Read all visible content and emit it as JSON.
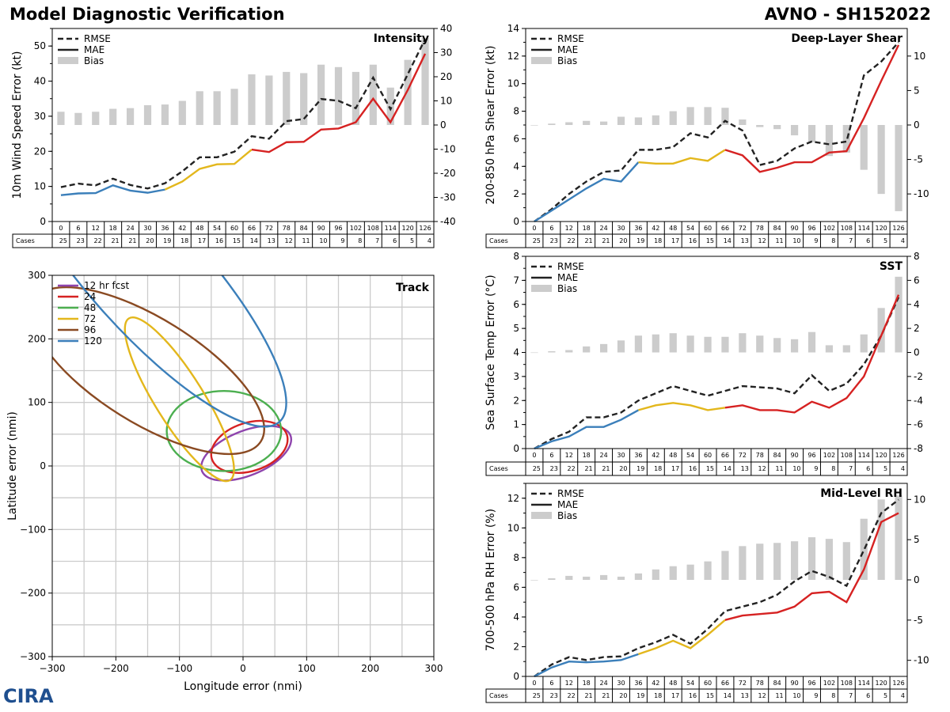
{
  "header": {
    "left_title": "Model Diagnostic Verification",
    "right_title": "AVNO - SH152022"
  },
  "logo": {
    "text": "CIRA",
    "icon": "cira-logo-icon"
  },
  "colors": {
    "rmse": "#222222",
    "short": "#3b7fba",
    "mid": "#e3b71c",
    "long": "#d62222",
    "bias": "#cccccc"
  },
  "hours": [
    "0",
    "6",
    "12",
    "18",
    "24",
    "30",
    "36",
    "42",
    "48",
    "54",
    "60",
    "66",
    "72",
    "78",
    "84",
    "90",
    "96",
    "102",
    "108",
    "114",
    "120",
    "126"
  ],
  "cases": [
    "25",
    "23",
    "22",
    "21",
    "21",
    "20",
    "19",
    "18",
    "17",
    "16",
    "15",
    "14",
    "13",
    "12",
    "11",
    "10",
    "9",
    "8",
    "7",
    "6",
    "5",
    "4"
  ],
  "cases_label": "Cases",
  "chart_data": [
    {
      "id": "intensity",
      "type": "line",
      "title": "Intensity",
      "ylabel": "10m Wind Speed Error (kt)",
      "ylim": [
        0,
        55
      ],
      "yticks": [
        0,
        10,
        20,
        30,
        40,
        50
      ],
      "y2lim": [
        -40,
        40
      ],
      "y2ticks": [
        -40,
        -30,
        -20,
        -10,
        0,
        10,
        20,
        30,
        40
      ],
      "legend": [
        "RMSE",
        "MAE",
        "Bias"
      ],
      "rmse": [
        9.8,
        10.8,
        10.3,
        12.2,
        10.4,
        9.4,
        10.9,
        14.3,
        18.3,
        18.3,
        19.9,
        24.3,
        23.6,
        28.6,
        29.2,
        34.9,
        34.4,
        32.3,
        41.0,
        32.0,
        42.0,
        52.0
      ],
      "mae": [
        7.5,
        8.0,
        8.1,
        10.3,
        8.8,
        8.2,
        9.1,
        11.4,
        15.0,
        16.3,
        16.4,
        20.5,
        19.8,
        22.6,
        22.7,
        26.2,
        26.5,
        28.3,
        35.0,
        28.3,
        37.5,
        47.8
      ],
      "bias": [
        5.5,
        5,
        5.5,
        6.7,
        7,
        8.2,
        8.5,
        10,
        14,
        14,
        15,
        21,
        20.5,
        22,
        21.5,
        25,
        24,
        22,
        25,
        15.5,
        27,
        36
      ]
    },
    {
      "id": "shear",
      "type": "line",
      "title": "Deep-Layer Shear",
      "ylabel": "200-850 hPa Shear Error (kt)",
      "ylim": [
        0,
        14
      ],
      "yticks": [
        0,
        2,
        4,
        6,
        8,
        10,
        12,
        14
      ],
      "y2lim": [
        -14,
        14
      ],
      "y2ticks": [
        -10,
        -5,
        0,
        5,
        10
      ],
      "legend": [
        "RMSE",
        "MAE",
        "Bias"
      ],
      "rmse": [
        0,
        0.9,
        2.0,
        2.9,
        3.6,
        3.7,
        5.2,
        5.2,
        5.4,
        6.4,
        6.1,
        7.3,
        6.6,
        4.1,
        4.4,
        5.3,
        5.8,
        5.6,
        5.8,
        10.6,
        11.6,
        13.0
      ],
      "mae": [
        0,
        0.8,
        1.6,
        2.4,
        3.1,
        2.9,
        4.3,
        4.2,
        4.2,
        4.6,
        4.4,
        5.2,
        4.8,
        3.6,
        3.9,
        4.3,
        4.3,
        5.0,
        5.1,
        7.5,
        10.2,
        12.8
      ],
      "bias": [
        0,
        0.2,
        0.4,
        0.6,
        0.5,
        1.2,
        1.1,
        1.4,
        2.0,
        2.6,
        2.6,
        2.5,
        0.8,
        -0.3,
        -0.6,
        -1.5,
        -2.5,
        -4.5,
        -4.0,
        -6.5,
        -10.0,
        -12.5
      ]
    },
    {
      "id": "sst",
      "type": "line",
      "title": "SST",
      "ylabel": "Sea Surface Temp Error (°C)",
      "ylim": [
        0,
        8
      ],
      "yticks": [
        0,
        1,
        2,
        3,
        4,
        5,
        6,
        7,
        8
      ],
      "y2lim": [
        -8,
        8
      ],
      "y2ticks": [
        -8,
        -6,
        -4,
        -2,
        0,
        2,
        4,
        6,
        8
      ],
      "legend": [
        "RMSE",
        "MAE",
        "Bias"
      ],
      "rmse": [
        0,
        0.4,
        0.7,
        1.3,
        1.3,
        1.5,
        2.0,
        2.3,
        2.6,
        2.4,
        2.2,
        2.4,
        2.6,
        2.55,
        2.5,
        2.3,
        3.05,
        2.4,
        2.7,
        3.5,
        4.7,
        6.3
      ],
      "mae": [
        0,
        0.3,
        0.5,
        0.9,
        0.9,
        1.2,
        1.6,
        1.8,
        1.9,
        1.8,
        1.6,
        1.7,
        1.8,
        1.6,
        1.6,
        1.5,
        1.95,
        1.7,
        2.1,
        3.0,
        4.7,
        6.4
      ],
      "bias": [
        0,
        0.1,
        0.2,
        0.5,
        0.7,
        1.0,
        1.4,
        1.5,
        1.6,
        1.4,
        1.3,
        1.3,
        1.6,
        1.4,
        1.2,
        1.1,
        1.7,
        0.6,
        0.6,
        1.5,
        3.7,
        6.3
      ]
    },
    {
      "id": "rh",
      "type": "line",
      "title": "Mid-Level RH",
      "ylabel": "700-500 hPa RH Error (%)",
      "ylim": [
        0,
        13
      ],
      "yticks": [
        0,
        2,
        4,
        6,
        8,
        10,
        12
      ],
      "y2lim": [
        -12,
        12
      ],
      "y2ticks": [
        -10,
        -5,
        0,
        5,
        10
      ],
      "legend": [
        "RMSE",
        "MAE",
        "Bias"
      ],
      "rmse": [
        0,
        0.8,
        1.3,
        1.1,
        1.3,
        1.35,
        1.9,
        2.3,
        2.8,
        2.2,
        3.2,
        4.4,
        4.7,
        5.0,
        5.5,
        6.4,
        7.1,
        6.7,
        6.1,
        8.5,
        11.0,
        11.9
      ],
      "mae": [
        0,
        0.6,
        1.0,
        0.95,
        1.0,
        1.1,
        1.5,
        1.9,
        2.4,
        1.9,
        2.8,
        3.8,
        4.1,
        4.2,
        4.3,
        4.7,
        5.6,
        5.7,
        5.0,
        7.2,
        10.4,
        11.0
      ],
      "bias": [
        0,
        0.2,
        0.5,
        0.4,
        0.6,
        0.4,
        0.8,
        1.3,
        1.7,
        1.9,
        2.3,
        3.6,
        4.2,
        4.5,
        4.6,
        4.8,
        5.3,
        5.1,
        4.7,
        7.6,
        10.0,
        10.5
      ]
    },
    {
      "id": "track",
      "type": "ellipse",
      "title": "Track",
      "xlabel": "Longitude error (nmi)",
      "ylabel": "Latitude error (nmi)",
      "xlim": [
        -300,
        300
      ],
      "ylim": [
        -300,
        300
      ],
      "xticks": [
        -300,
        -200,
        -100,
        0,
        100,
        200,
        300
      ],
      "yticks": [
        -300,
        -200,
        -100,
        0,
        100,
        200,
        300
      ],
      "legend_title": "12 hr fcst",
      "ellipses": [
        {
          "label": "12 hr fcst",
          "color": "#8e44ad",
          "cx": 5,
          "cy": 20,
          "a": 75,
          "b": 35,
          "angle": -22
        },
        {
          "label": "24",
          "color": "#d62222",
          "cx": 10,
          "cy": 30,
          "a": 62,
          "b": 38,
          "angle": -18
        },
        {
          "label": "48",
          "color": "#4caf50",
          "cx": -30,
          "cy": 55,
          "a": 90,
          "b": 63,
          "angle": 0
        },
        {
          "label": "72",
          "color": "#e3b71c",
          "cx": -100,
          "cy": 105,
          "a": 150,
          "b": 38,
          "angle": 58
        },
        {
          "label": "96",
          "color": "#8a4a22",
          "cx": -150,
          "cy": 150,
          "a": 210,
          "b": 82,
          "angle": 32
        },
        {
          "label": "120",
          "color": "#3b7fba",
          "cx": -150,
          "cy": 300,
          "a": 310,
          "b": 90,
          "angle": 48
        }
      ]
    }
  ]
}
